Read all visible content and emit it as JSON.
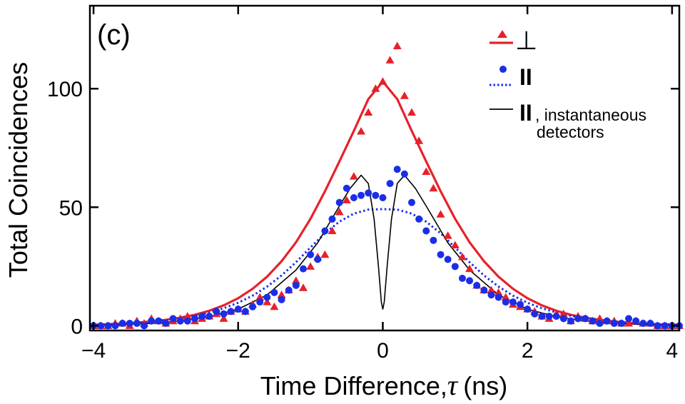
{
  "chart_data": {
    "type": "scatter",
    "panel_label": "(c)",
    "xlabel": "Time Difference,",
    "xlabel_symbol": "τ",
    "xlabel_unit": "(ns)",
    "ylabel": "Total Coincidences",
    "xlim": [
      -4.05,
      4.1
    ],
    "ylim": [
      -2,
      135
    ],
    "xticks": [
      -4,
      -2,
      0,
      2,
      4
    ],
    "xtick_labels": [
      "−4",
      "−2",
      "0",
      "2",
      "4"
    ],
    "yticks": [
      0,
      50,
      100
    ],
    "ytick_labels": [
      "0",
      "50",
      "100"
    ],
    "grid": false,
    "legend_position": "top-right",
    "legend": [
      {
        "label": "⊥",
        "marker": "triangle",
        "line": "solid",
        "color": "#e8202a"
      },
      {
        "label": "II",
        "marker": "circle",
        "line": "dotted",
        "color": "#1a2ee8"
      },
      {
        "label": "II",
        "sublabel": ", instantaneous",
        "sublabel2": "detectors",
        "marker": "none",
        "line": "solid",
        "color": "#000000"
      }
    ],
    "series": [
      {
        "name": "perp-data",
        "kind": "scatter",
        "marker": "triangle",
        "color": "#e8202a",
        "x": [
          -4.0,
          -3.9,
          -3.8,
          -3.7,
          -3.6,
          -3.5,
          -3.4,
          -3.3,
          -3.2,
          -3.1,
          -3.0,
          -2.9,
          -2.8,
          -2.7,
          -2.6,
          -2.5,
          -2.4,
          -2.3,
          -2.2,
          -2.1,
          -2.0,
          -1.9,
          -1.8,
          -1.7,
          -1.6,
          -1.5,
          -1.4,
          -1.3,
          -1.2,
          -1.1,
          -1.0,
          -0.9,
          -0.8,
          -0.7,
          -0.6,
          -0.5,
          -0.4,
          -0.3,
          -0.2,
          -0.1,
          0.0,
          0.1,
          0.2,
          0.3,
          0.4,
          0.5,
          0.6,
          0.7,
          0.8,
          0.9,
          1.0,
          1.1,
          1.2,
          1.3,
          1.4,
          1.5,
          1.6,
          1.7,
          1.8,
          1.9,
          2.0,
          2.1,
          2.2,
          2.3,
          2.4,
          2.5,
          2.6,
          2.7,
          2.8,
          2.9,
          3.0,
          3.1,
          3.2,
          3.3,
          3.4,
          3.5,
          3.6,
          3.7,
          3.8,
          3.9,
          4.0,
          4.1
        ],
        "y": [
          0,
          0,
          0,
          1,
          1,
          0,
          2,
          1,
          3,
          2,
          1,
          2,
          3,
          4,
          2,
          3,
          4,
          5,
          3,
          6,
          7,
          6,
          9,
          12,
          10,
          8,
          13,
          15,
          19,
          16,
          25,
          29,
          30,
          40,
          48,
          53,
          63,
          82,
          90,
          100,
          103,
          112,
          118,
          97,
          90,
          78,
          65,
          58,
          47,
          38,
          34,
          29,
          24,
          17,
          15,
          15,
          14,
          12,
          9,
          8,
          7,
          6,
          4,
          3,
          5,
          5,
          2,
          4,
          3,
          2,
          3,
          2,
          2,
          1,
          1,
          2,
          1,
          1,
          0,
          0,
          0,
          0
        ]
      },
      {
        "name": "par-data",
        "kind": "scatter",
        "marker": "circle",
        "color": "#1a2ee8",
        "x": [
          -4.0,
          -3.9,
          -3.8,
          -3.7,
          -3.6,
          -3.5,
          -3.4,
          -3.3,
          -3.2,
          -3.1,
          -3.0,
          -2.9,
          -2.8,
          -2.7,
          -2.6,
          -2.5,
          -2.4,
          -2.3,
          -2.2,
          -2.1,
          -2.0,
          -1.9,
          -1.8,
          -1.7,
          -1.6,
          -1.5,
          -1.4,
          -1.3,
          -1.2,
          -1.1,
          -1.0,
          -0.9,
          -0.8,
          -0.7,
          -0.6,
          -0.5,
          -0.4,
          -0.3,
          -0.2,
          -0.1,
          0.0,
          0.1,
          0.2,
          0.3,
          0.4,
          0.5,
          0.6,
          0.7,
          0.8,
          0.9,
          1.0,
          1.1,
          1.2,
          1.3,
          1.4,
          1.5,
          1.6,
          1.7,
          1.8,
          1.9,
          2.0,
          2.1,
          2.2,
          2.3,
          2.4,
          2.5,
          2.6,
          2.7,
          2.8,
          2.9,
          3.0,
          3.1,
          3.2,
          3.3,
          3.4,
          3.5,
          3.6,
          3.7,
          3.8,
          3.9,
          4.0,
          4.1
        ],
        "y": [
          0,
          0,
          0,
          0,
          1,
          1,
          1,
          0,
          2,
          2,
          1,
          3,
          2,
          2,
          3,
          4,
          4,
          6,
          5,
          6,
          7,
          6,
          8,
          10,
          12,
          14,
          11,
          15,
          17,
          24,
          30,
          28,
          40,
          45,
          52,
          58,
          54,
          55,
          56,
          55,
          54,
          60,
          66,
          64,
          52,
          45,
          40,
          36,
          30,
          28,
          25,
          20,
          19,
          17,
          15,
          13,
          12,
          10,
          10,
          9,
          7,
          5,
          4,
          4,
          4,
          3,
          2,
          3,
          3,
          2,
          1,
          2,
          1,
          1,
          3,
          2,
          1,
          1,
          0,
          0,
          0,
          0
        ]
      },
      {
        "name": "perp-fit",
        "kind": "line",
        "style": "solid",
        "color": "#e8202a",
        "width": 3.2,
        "x": [
          -4.0,
          -3.8,
          -3.6,
          -3.4,
          -3.2,
          -3.0,
          -2.8,
          -2.6,
          -2.4,
          -2.2,
          -2.0,
          -1.8,
          -1.6,
          -1.4,
          -1.2,
          -1.0,
          -0.8,
          -0.6,
          -0.4,
          -0.2,
          0.0,
          0.2,
          0.4,
          0.6,
          0.8,
          1.0,
          1.2,
          1.4,
          1.6,
          1.8,
          2.0,
          2.2,
          2.4,
          2.6,
          2.8,
          3.0,
          3.2,
          3.4,
          3.6,
          3.8,
          4.1
        ],
        "y": [
          0.4,
          0.6,
          0.9,
          1.3,
          1.8,
          2.5,
          3.4,
          4.6,
          6.3,
          8.6,
          11.6,
          15.6,
          20.7,
          27.2,
          35.2,
          45.1,
          56.7,
          69.3,
          82.2,
          95.6,
          103.0,
          95.6,
          82.2,
          69.3,
          56.7,
          45.1,
          35.2,
          27.2,
          20.7,
          15.6,
          11.6,
          8.6,
          6.3,
          4.6,
          3.4,
          2.5,
          1.8,
          1.3,
          0.9,
          0.6,
          0.4
        ]
      },
      {
        "name": "par-fit",
        "kind": "line",
        "style": "dotted",
        "color": "#1a2ee8",
        "width": 3.0,
        "x": [
          -4.0,
          -3.8,
          -3.6,
          -3.4,
          -3.2,
          -3.0,
          -2.8,
          -2.6,
          -2.4,
          -2.2,
          -2.0,
          -1.8,
          -1.6,
          -1.4,
          -1.2,
          -1.0,
          -0.8,
          -0.6,
          -0.4,
          -0.2,
          0.0,
          0.2,
          0.4,
          0.6,
          0.8,
          1.0,
          1.2,
          1.4,
          1.6,
          1.8,
          2.0,
          2.2,
          2.4,
          2.6,
          2.8,
          3.0,
          3.2,
          3.4,
          3.6,
          3.8,
          4.1
        ],
        "y": [
          0.4,
          0.6,
          0.9,
          1.2,
          1.7,
          2.3,
          3.1,
          4.2,
          5.6,
          7.4,
          9.7,
          12.7,
          16.5,
          21.2,
          26.8,
          33.0,
          39.0,
          43.9,
          47.3,
          49.0,
          49.2,
          49.0,
          47.3,
          43.9,
          39.0,
          33.0,
          26.8,
          21.2,
          16.5,
          12.7,
          9.7,
          7.4,
          5.6,
          4.2,
          3.1,
          2.3,
          1.7,
          1.2,
          0.9,
          0.6,
          0.4
        ]
      },
      {
        "name": "instantaneous-fit",
        "kind": "line",
        "style": "solid",
        "color": "#000000",
        "width": 1.6,
        "x": [
          -4.0,
          -3.6,
          -3.2,
          -2.8,
          -2.4,
          -2.0,
          -1.6,
          -1.2,
          -0.9,
          -0.6,
          -0.45,
          -0.3,
          -0.2,
          -0.12,
          -0.06,
          -0.02,
          0.0,
          0.02,
          0.06,
          0.12,
          0.2,
          0.3,
          0.45,
          0.6,
          0.9,
          1.2,
          1.6,
          2.0,
          2.4,
          2.8,
          3.2,
          3.6,
          4.1
        ],
        "y": [
          0.2,
          0.5,
          1.0,
          2.0,
          3.8,
          7.0,
          13.0,
          23.5,
          35.0,
          50.5,
          58.0,
          63.5,
          60.0,
          45.0,
          25.0,
          10.0,
          7.0,
          10.0,
          25.0,
          45.0,
          60.0,
          63.5,
          58.0,
          50.5,
          35.0,
          23.5,
          13.0,
          7.0,
          3.8,
          2.0,
          1.0,
          0.5,
          0.2
        ]
      }
    ]
  }
}
